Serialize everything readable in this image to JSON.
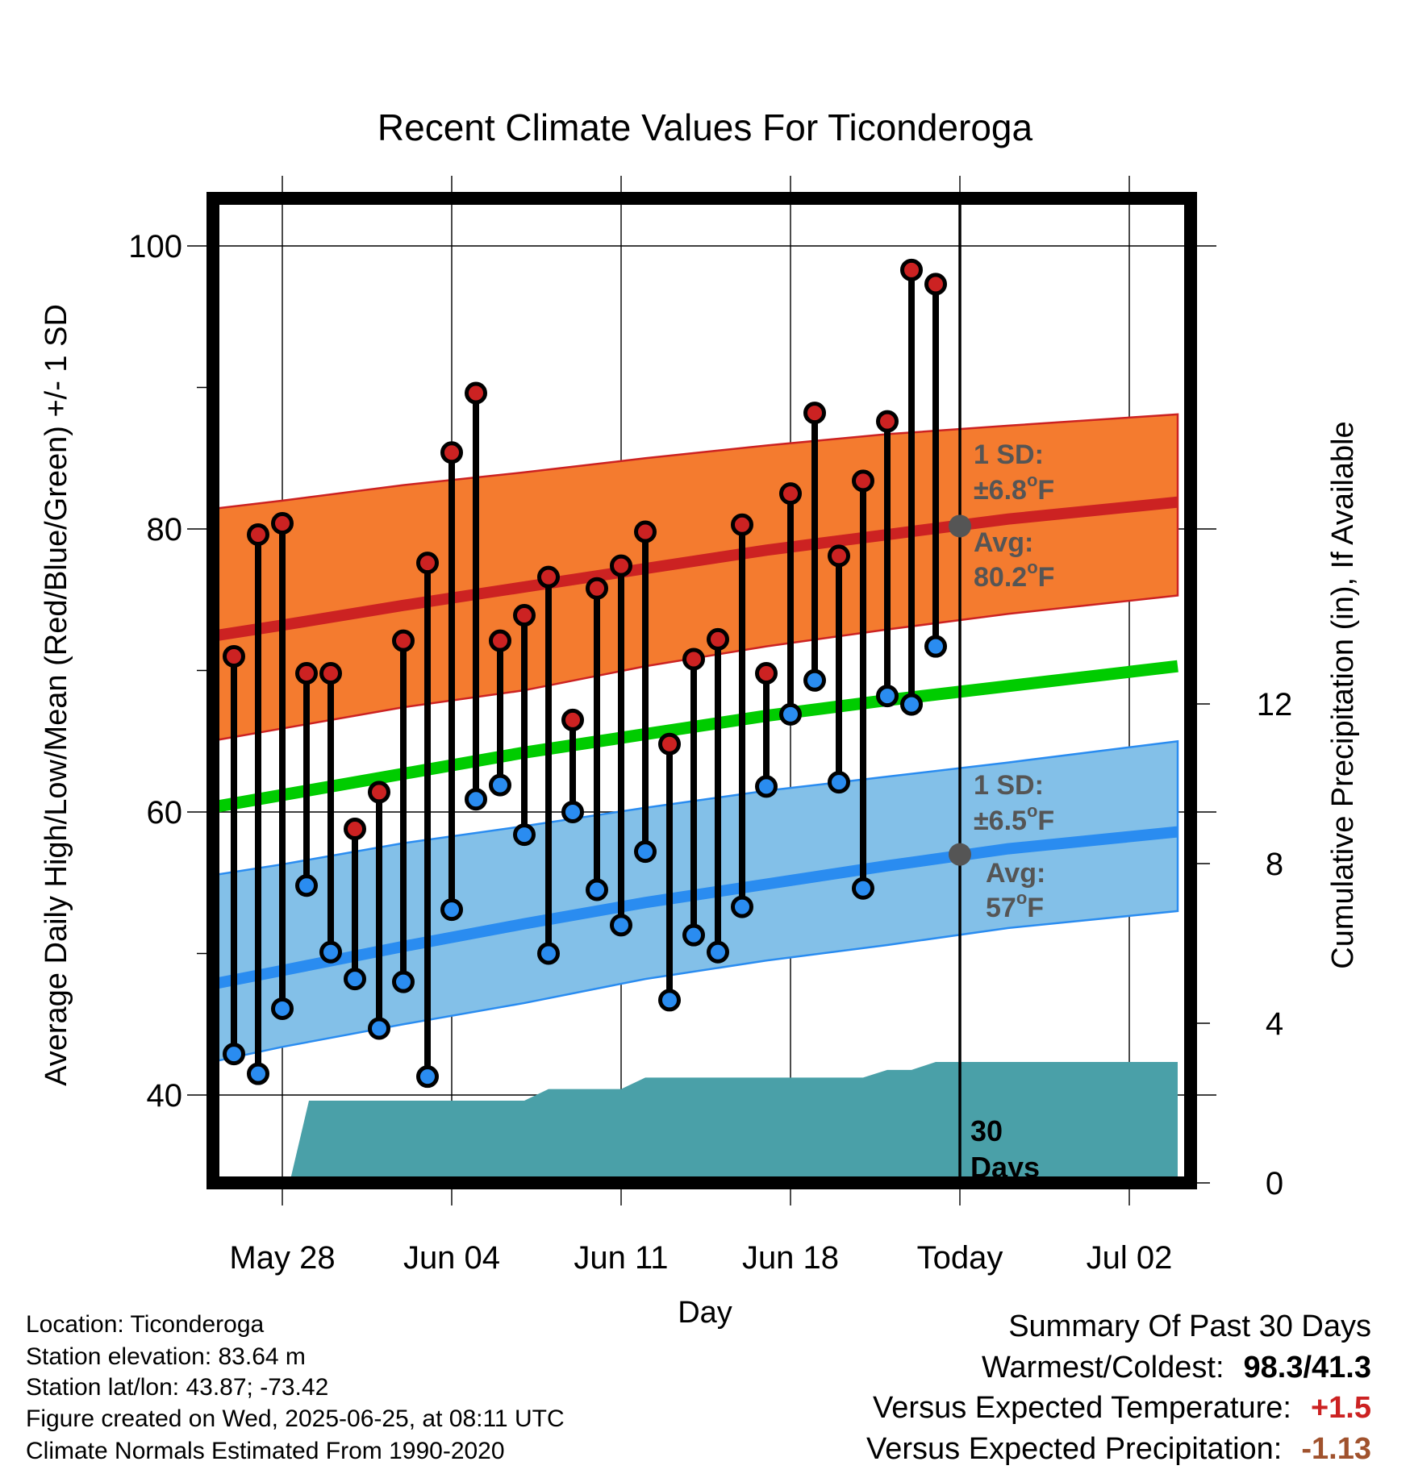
{
  "chart_data": {
    "type": "line",
    "title": "Recent Climate Values For Ticonderoga",
    "xlabel": "Day",
    "ylabel": "Average Daily High/Low/Mean (Red/Blue/Green) +/- 1 SD",
    "y2label": "Cumulative Precipitation (in), If Available",
    "x_domain": [
      -3.3,
      37.3
    ],
    "ylim": [
      32,
      104
    ],
    "y2lim": [
      0,
      19.43
    ],
    "x_tick_labels": [
      {
        "x": 0,
        "label": "May 28"
      },
      {
        "x": 7,
        "label": "Jun 04"
      },
      {
        "x": 14,
        "label": "Jun 11"
      },
      {
        "x": 21,
        "label": "Jun 18"
      },
      {
        "x": 28,
        "label": "Today"
      },
      {
        "x": 35,
        "label": "Jul 02"
      }
    ],
    "y_ticks": [
      40,
      60,
      80,
      100
    ],
    "y_minor_ticks": [
      50,
      70,
      90
    ],
    "y2_ticks": [
      0,
      4,
      8,
      12
    ],
    "grid": true,
    "today_x": 28,
    "days": [
      -2,
      -1,
      0,
      1,
      2,
      3,
      4,
      5,
      6,
      7,
      8,
      9,
      10,
      11,
      12,
      13,
      14,
      15,
      16,
      17,
      18,
      19,
      20,
      21,
      22,
      23,
      24,
      25,
      26,
      27
    ],
    "highs": [
      71.0,
      79.6,
      80.4,
      69.8,
      69.8,
      58.8,
      61.4,
      72.1,
      77.6,
      85.4,
      89.6,
      72.1,
      73.9,
      76.6,
      66.5,
      75.8,
      77.4,
      79.8,
      64.8,
      70.8,
      72.2,
      80.3,
      69.8,
      82.5,
      88.2,
      78.1,
      83.4,
      87.6,
      98.3,
      97.3
    ],
    "lows": [
      42.9,
      41.5,
      46.1,
      54.8,
      50.1,
      48.2,
      44.7,
      48.0,
      41.3,
      53.1,
      60.9,
      61.9,
      58.4,
      50.0,
      60.0,
      54.5,
      52.0,
      57.2,
      46.7,
      51.3,
      50.1,
      53.3,
      61.8,
      66.9,
      69.3,
      62.1,
      54.6,
      68.2,
      67.6,
      71.7
    ],
    "normals": {
      "x": [
        -3,
        0,
        5,
        10,
        15,
        20,
        25,
        30,
        37
      ],
      "high_avg": [
        72.4,
        73.2,
        74.6,
        75.9,
        77.2,
        78.5,
        79.6,
        80.7,
        81.9
      ],
      "high_upper": [
        81.4,
        82.0,
        83.1,
        84.0,
        85.0,
        85.9,
        86.7,
        87.3,
        88.1
      ],
      "high_lower": [
        65.0,
        65.9,
        67.4,
        68.6,
        70.3,
        71.7,
        72.9,
        74.0,
        75.3
      ],
      "mean": [
        60.3,
        61.2,
        62.7,
        64.2,
        65.5,
        66.8,
        67.9,
        68.9,
        70.3
      ],
      "low_avg": [
        47.8,
        48.8,
        50.5,
        52.1,
        53.6,
        54.9,
        56.2,
        57.4,
        58.6
      ],
      "low_upper": [
        55.5,
        56.3,
        57.8,
        59.0,
        60.3,
        61.5,
        62.5,
        63.5,
        65.0
      ],
      "low_lower": [
        42.3,
        43.4,
        45.0,
        46.5,
        48.2,
        49.5,
        50.6,
        51.8,
        53.0
      ]
    },
    "precip": {
      "x": [
        0.3,
        1.1,
        2,
        3,
        4,
        5,
        6,
        7,
        8,
        9,
        10,
        11,
        12,
        13,
        14,
        15,
        16,
        17,
        18,
        19,
        20,
        21,
        22,
        23,
        24,
        25,
        26,
        27,
        28,
        37
      ],
      "values": [
        0,
        2.06,
        2.06,
        2.06,
        2.06,
        2.06,
        2.06,
        2.06,
        2.06,
        2.06,
        2.06,
        2.35,
        2.35,
        2.35,
        2.35,
        2.64,
        2.64,
        2.64,
        2.64,
        2.64,
        2.64,
        2.64,
        2.64,
        2.64,
        2.64,
        2.83,
        2.83,
        3.03,
        3.03,
        3.03
      ]
    },
    "colors": {
      "high": "#cc2222",
      "low": "#2a8cf0",
      "mean": "#00cc00",
      "high_band": "#f47b2f",
      "low_band": "#83c0e8",
      "precip": "#4aa0a8",
      "annotation": "#555555"
    },
    "annotations": {
      "high_sd": [
        "1 SD:",
        "±6.8",
        "o",
        "F"
      ],
      "high_avg_text": [
        "Avg:",
        "80.2",
        "o",
        "F"
      ],
      "high_avg_value": 80.2,
      "low_sd": [
        "1 SD:",
        "±6.5",
        "o",
        "F"
      ],
      "low_avg_text": [
        "Avg:",
        "57",
        "o",
        "F"
      ],
      "low_avg_value": 57,
      "days_window": [
        "30",
        "Days"
      ]
    }
  },
  "info": {
    "location": "Location: Ticonderoga",
    "elevation": "Station elevation: 83.64 m",
    "latlon": "Station lat/lon: 43.87; -73.42",
    "created": "Figure created on Wed, 2025-06-25, at 08:11 UTC",
    "normals": "Climate Normals Estimated From 1990-2020"
  },
  "summary": {
    "heading": "Summary Of Past 30 Days",
    "warmcold_label": "Warmest/Coldest:",
    "warmcold_value": "98.3/41.3",
    "temp_label": "Versus Expected Temperature:",
    "temp_value": "+1.5",
    "temp_color": "#cc2222",
    "precip_label": "Versus Expected Precipitation:",
    "precip_value": "-1.13",
    "precip_color": "#a0522d"
  }
}
